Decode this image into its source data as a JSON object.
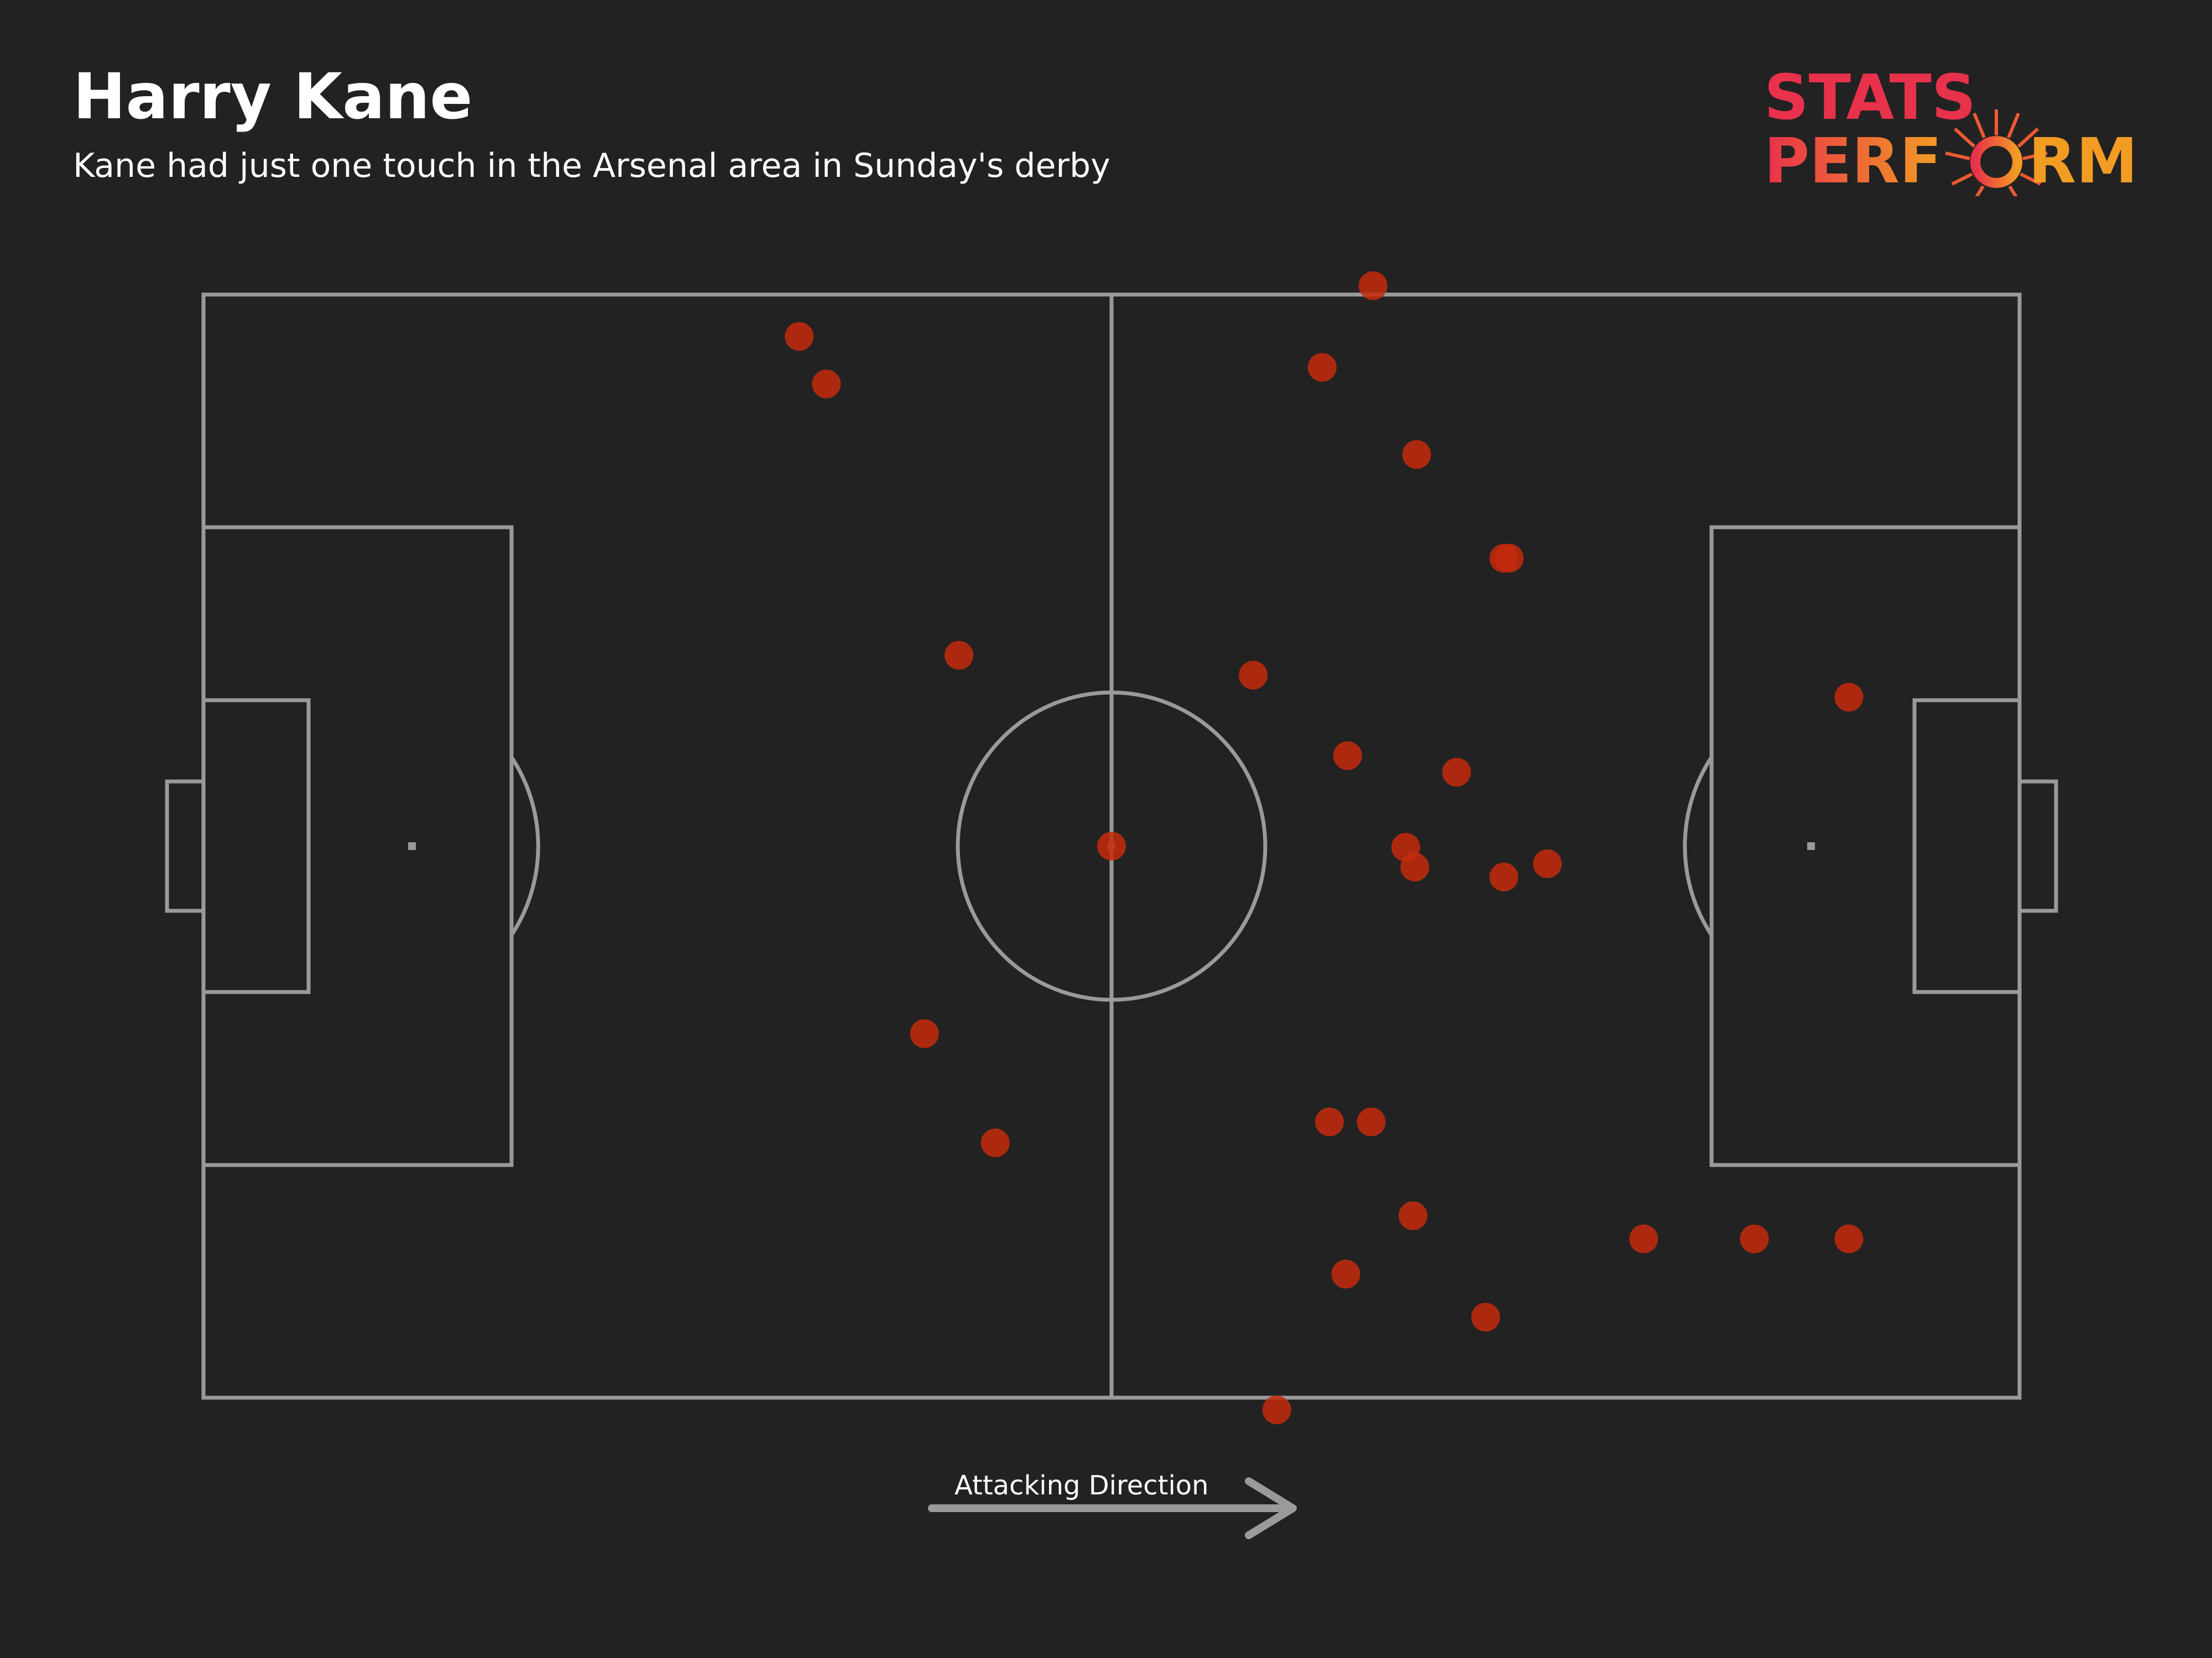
{
  "title": "Harry Kane",
  "subtitle": "Kane had just one touch in the Arsenal area in Sunday's derby",
  "logo": {
    "line1": "STATS",
    "line2_a": "PERF",
    "line2_b": "RM",
    "line1_color": "#e8314a",
    "gradient_start": "#e8314a",
    "gradient_end": "#f39c24"
  },
  "direction_label": "Attacking Direction",
  "colors": {
    "background": "#222222",
    "pitch_lines": "#9a9a9a",
    "touch_fill": "#c42a0c",
    "text": "#ffffff"
  },
  "chart_data": {
    "type": "scatter",
    "title": "Harry Kane",
    "subtitle": "Kane had just one touch in the Arsenal area in Sunday's derby",
    "x_range": [
      0,
      100
    ],
    "y_range": [
      0,
      100
    ],
    "grid": false,
    "points": [
      {
        "x": 32.8,
        "y": 96.2
      },
      {
        "x": 34.3,
        "y": 91.9
      },
      {
        "x": 64.4,
        "y": 100.8
      },
      {
        "x": 61.6,
        "y": 93.4
      },
      {
        "x": 66.8,
        "y": 85.5
      },
      {
        "x": 71.6,
        "y": 76.1
      },
      {
        "x": 71.9,
        "y": 76.1
      },
      {
        "x": 41.6,
        "y": 67.3
      },
      {
        "x": 57.8,
        "y": 65.5
      },
      {
        "x": 90.6,
        "y": 63.5
      },
      {
        "x": 63.0,
        "y": 58.2
      },
      {
        "x": 69.0,
        "y": 56.7
      },
      {
        "x": 50.0,
        "y": 50.0
      },
      {
        "x": 66.2,
        "y": 49.9
      },
      {
        "x": 66.7,
        "y": 48.1
      },
      {
        "x": 71.6,
        "y": 47.2
      },
      {
        "x": 74.0,
        "y": 48.4
      },
      {
        "x": 39.7,
        "y": 33.0
      },
      {
        "x": 43.6,
        "y": 23.1
      },
      {
        "x": 62.0,
        "y": 25.0
      },
      {
        "x": 64.3,
        "y": 25.0
      },
      {
        "x": 66.6,
        "y": 16.5
      },
      {
        "x": 79.3,
        "y": 14.4
      },
      {
        "x": 85.4,
        "y": 14.4
      },
      {
        "x": 90.6,
        "y": 14.4
      },
      {
        "x": 62.9,
        "y": 11.2
      },
      {
        "x": 70.6,
        "y": 7.3
      },
      {
        "x": 59.1,
        "y": -1.1
      }
    ]
  }
}
